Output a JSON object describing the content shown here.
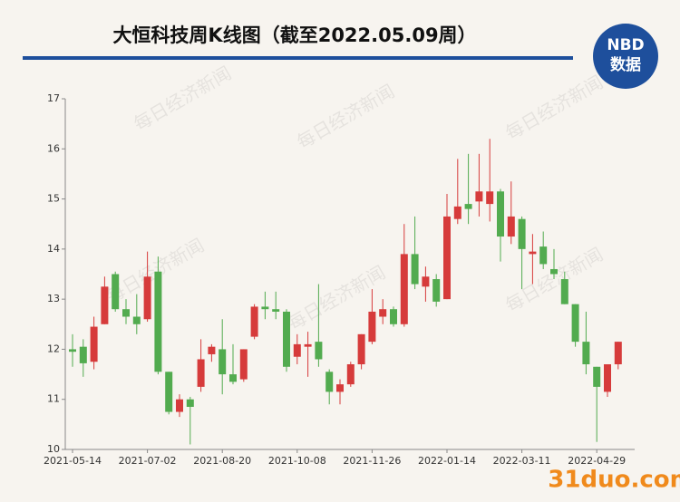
{
  "chart_data": {
    "type": "candlestick",
    "title": "大恒科技周K线图（截至2022.05.09周）",
    "logo": [
      "NBD",
      "数据"
    ],
    "watermark": "每日经济新闻",
    "site_watermark": "31duo.com",
    "categories": [
      "2021-05-14",
      null,
      null,
      null,
      null,
      null,
      null,
      "2021-07-02",
      null,
      null,
      null,
      null,
      null,
      null,
      "2021-08-20",
      null,
      null,
      null,
      null,
      null,
      null,
      "2021-10-08",
      null,
      null,
      null,
      null,
      null,
      null,
      "2021-11-26",
      null,
      null,
      null,
      null,
      null,
      null,
      "2022-01-14",
      null,
      null,
      null,
      null,
      null,
      null,
      "2022-03-11",
      null,
      null,
      null,
      null,
      null,
      null,
      "2022-04-29",
      null,
      null
    ],
    "open": [
      12.0,
      12.05,
      11.75,
      12.5,
      13.5,
      12.8,
      12.65,
      12.6,
      13.55,
      11.55,
      10.75,
      11.0,
      11.25,
      11.9,
      12.0,
      11.5,
      11.4,
      12.25,
      12.85,
      12.8,
      12.75,
      11.85,
      12.05,
      12.15,
      11.55,
      11.15,
      11.3,
      11.7,
      12.15,
      12.65,
      12.8,
      12.5,
      13.9,
      13.25,
      13.4,
      13.0,
      14.6,
      14.9,
      14.95,
      14.9,
      15.15,
      14.25,
      14.6,
      13.9,
      14.05,
      13.6,
      13.4,
      12.9,
      12.15,
      11.65,
      11.15,
      11.7
    ],
    "high": [
      12.3,
      12.2,
      12.65,
      13.45,
      13.55,
      13.0,
      13.1,
      13.95,
      13.85,
      11.55,
      11.1,
      11.05,
      12.2,
      12.1,
      12.6,
      12.1,
      12.0,
      12.9,
      13.15,
      13.15,
      12.8,
      12.3,
      12.35,
      13.3,
      11.6,
      11.4,
      11.75,
      12.3,
      13.2,
      13.0,
      12.85,
      14.5,
      14.65,
      13.65,
      13.5,
      15.1,
      15.8,
      15.9,
      15.9,
      16.2,
      15.2,
      15.35,
      14.65,
      14.3,
      14.35,
      14.0,
      13.55,
      12.9,
      12.75,
      11.65,
      11.7,
      12.15
    ],
    "low": [
      11.65,
      11.45,
      11.6,
      12.5,
      12.75,
      12.5,
      12.3,
      12.55,
      11.5,
      10.7,
      10.65,
      10.1,
      11.15,
      11.75,
      11.1,
      11.3,
      11.35,
      12.2,
      12.6,
      12.6,
      11.55,
      11.7,
      11.45,
      11.65,
      10.9,
      10.9,
      11.25,
      11.6,
      12.1,
      12.5,
      12.45,
      12.45,
      13.2,
      12.95,
      12.85,
      13.0,
      14.5,
      14.5,
      14.65,
      14.55,
      13.75,
      14.1,
      13.2,
      13.3,
      13.6,
      13.4,
      12.9,
      12.05,
      11.5,
      10.15,
      11.05,
      11.6
    ],
    "close": [
      11.95,
      11.72,
      12.45,
      13.25,
      12.8,
      12.65,
      12.5,
      13.45,
      11.55,
      10.75,
      11.0,
      10.85,
      11.8,
      12.05,
      11.5,
      11.35,
      12.0,
      12.85,
      12.8,
      12.75,
      11.65,
      12.1,
      12.1,
      11.8,
      11.15,
      11.3,
      11.7,
      12.3,
      12.75,
      12.8,
      12.5,
      13.9,
      13.3,
      13.45,
      12.95,
      14.65,
      14.85,
      14.8,
      15.15,
      15.15,
      14.25,
      14.65,
      14.0,
      13.95,
      13.7,
      13.5,
      12.9,
      12.15,
      11.7,
      11.25,
      11.7,
      12.15
    ],
    "up_color": "#d63b3b",
    "down_color": "#52ab4f",
    "ylim": [
      10,
      17
    ],
    "yticks": [
      10,
      11,
      12,
      13,
      14,
      15,
      16,
      17
    ]
  }
}
